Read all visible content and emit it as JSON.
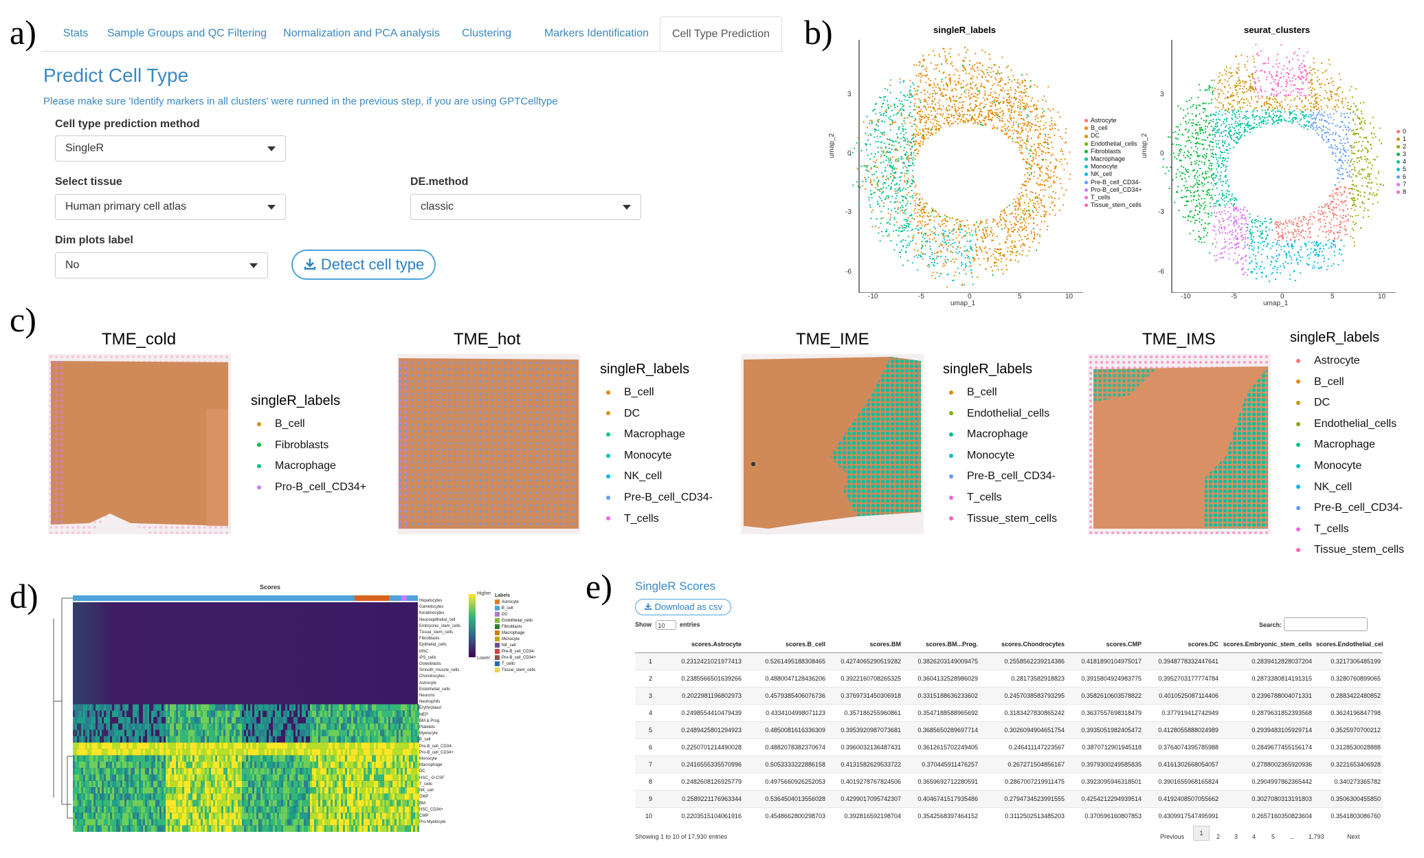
{
  "letters": {
    "a": "a)",
    "b": "b)",
    "c": "c)",
    "d": "d)",
    "e": "e)"
  },
  "panel_a": {
    "tabs": [
      "Stats",
      "Sample Groups and QC Filtering",
      "Normalization and PCA analysis",
      "Clustering",
      "Markers Identification",
      "Cell Type Prediction"
    ],
    "active_tab": "Cell Type Prediction",
    "title": "Predict Cell Type",
    "help": "Please make sure 'Identify markers in all clusters' were runned in the previous step, if you are using GPTCelltype",
    "method_label": "Cell type prediction method",
    "method_value": "SingleR",
    "tissue_label": "Select tissue",
    "tissue_value": "Human primary cell atlas",
    "de_label": "DE.method",
    "de_value": "classic",
    "dim_label": "Dim plots label",
    "dim_value": "No",
    "detect_label": "Detect cell type"
  },
  "panel_b": {
    "left_title": "singleR_labels",
    "right_title": "seurat_clusters",
    "xlabel": "umap_1",
    "ylabel": "umap_2",
    "xticks": [
      "-10",
      "-5",
      "0",
      "5",
      "10"
    ],
    "yticks": [
      "3",
      "0",
      "-3",
      "-6"
    ],
    "labels_legend": [
      {
        "name": "Astrocyte",
        "color": "#f8766d"
      },
      {
        "name": "B_cell",
        "color": "#e58700"
      },
      {
        "name": "DC",
        "color": "#c99800"
      },
      {
        "name": "Endothelial_cells",
        "color": "#7cae00"
      },
      {
        "name": "Fibroblasts",
        "color": "#00ba38"
      },
      {
        "name": "Macrophage",
        "color": "#00c08b"
      },
      {
        "name": "Monocyte",
        "color": "#00bfc4"
      },
      {
        "name": "NK_cell",
        "color": "#00b4f0"
      },
      {
        "name": "Pre-B_cell_CD34-",
        "color": "#619cff"
      },
      {
        "name": "Pro-B_cell_CD34+",
        "color": "#c77cff"
      },
      {
        "name": "T_cells",
        "color": "#f564e3"
      },
      {
        "name": "Tissue_stem_cells",
        "color": "#ff64b0"
      }
    ],
    "clusters_legend": [
      {
        "name": "0",
        "color": "#f8766d"
      },
      {
        "name": "1",
        "color": "#d39200"
      },
      {
        "name": "2",
        "color": "#93aa00"
      },
      {
        "name": "3",
        "color": "#00ba38"
      },
      {
        "name": "4",
        "color": "#00c19f"
      },
      {
        "name": "5",
        "color": "#00b9e3"
      },
      {
        "name": "6",
        "color": "#619cff"
      },
      {
        "name": "7",
        "color": "#db72fb"
      },
      {
        "name": "8",
        "color": "#ff61c3"
      }
    ]
  },
  "panel_c": {
    "samples": [
      {
        "title": "TME_cold",
        "legend_title": "singleR_labels",
        "legend": [
          {
            "name": "B_cell",
            "color": "#e58700"
          },
          {
            "name": "Fibroblasts",
            "color": "#00ba38"
          },
          {
            "name": "Macrophage",
            "color": "#00c08b"
          },
          {
            "name": "Pro-B_cell_CD34+",
            "color": "#c77cff"
          }
        ]
      },
      {
        "title": "TME_hot",
        "legend_title": "singleR_labels",
        "legend": [
          {
            "name": "B_cell",
            "color": "#e58700"
          },
          {
            "name": "DC",
            "color": "#c99800"
          },
          {
            "name": "Macrophage",
            "color": "#00c08b"
          },
          {
            "name": "Monocyte",
            "color": "#00bfc4"
          },
          {
            "name": "NK_cell",
            "color": "#00b4f0"
          },
          {
            "name": "Pre-B_cell_CD34-",
            "color": "#619cff"
          },
          {
            "name": "T_cells",
            "color": "#f564e3"
          }
        ]
      },
      {
        "title": "TME_IME",
        "legend_title": "singleR_labels",
        "legend": [
          {
            "name": "B_cell",
            "color": "#e58700"
          },
          {
            "name": "Endothelial_cells",
            "color": "#7cae00"
          },
          {
            "name": "Macrophage",
            "color": "#00c08b"
          },
          {
            "name": "Monocyte",
            "color": "#00bfc4"
          },
          {
            "name": "Pre-B_cell_CD34-",
            "color": "#619cff"
          },
          {
            "name": "T_cells",
            "color": "#f564e3"
          },
          {
            "name": "Tissue_stem_cells",
            "color": "#ff64b0"
          }
        ]
      },
      {
        "title": "TME_IMS",
        "legend_title": "singleR_labels",
        "legend": [
          {
            "name": "Astrocyte",
            "color": "#f8766d"
          },
          {
            "name": "B_cell",
            "color": "#e58700"
          },
          {
            "name": "DC",
            "color": "#c99800"
          },
          {
            "name": "Endothelial_cells",
            "color": "#7cae00"
          },
          {
            "name": "Macrophage",
            "color": "#00c08b"
          },
          {
            "name": "Monocyte",
            "color": "#00bfc4"
          },
          {
            "name": "NK_cell",
            "color": "#00b4f0"
          },
          {
            "name": "Pre-B_cell_CD34-",
            "color": "#619cff"
          },
          {
            "name": "T_cells",
            "color": "#f564e3"
          },
          {
            "name": "Tissue_stem_cells",
            "color": "#ff64b0"
          }
        ]
      }
    ]
  },
  "panel_d": {
    "title": "Scores",
    "legend_title": "Labels",
    "scale_high": "Higher",
    "scale_low": "Lower",
    "row_labels": [
      "Hepatocytes",
      "Gametocytes",
      "Keratinocytes",
      "Neuroepithelial_cell",
      "Embryonic_stem_cells",
      "Tissue_stem_cells",
      "Fibroblasts",
      "Epithelial_cells",
      "MSC",
      "iPS_cells",
      "Osteoblasts",
      "Smooth_muscle_cells",
      "Chondrocytes",
      "Astrocyte",
      "Endothelial_cells",
      "Neurons",
      "Neutrophils",
      "Erythroblast",
      "MEP",
      "BM & Prog.",
      "Platelets",
      "Myelocyte",
      "B_cell",
      "Pre-B_cell_CD34-",
      "Pro-B_cell_CD34+",
      "Monocyte",
      "Macrophage",
      "DC",
      "HSC_-G-CSF",
      "T_cells",
      "NK_cell",
      "GMP",
      "BM",
      "HSC_CD34+",
      "CMP",
      "Pro-Myelocyte"
    ],
    "labels_legend": [
      {
        "name": "Astrocyte",
        "color": "#e07b2a"
      },
      {
        "name": "B_cell",
        "color": "#4ea3d8"
      },
      {
        "name": "DC",
        "color": "#b07cc6"
      },
      {
        "name": "Endothelial_cells",
        "color": "#7fbf3f"
      },
      {
        "name": "Fibroblasts",
        "color": "#2e7d32"
      },
      {
        "name": "Macrophage",
        "color": "#d97a1a"
      },
      {
        "name": "Monocyte",
        "color": "#c9a400"
      },
      {
        "name": "NK_cell",
        "color": "#6a4c93"
      },
      {
        "name": "Pre-B_cell_CD34-",
        "color": "#d43f3a"
      },
      {
        "name": "Pro-B_cell_CD34+",
        "color": "#8c564b"
      },
      {
        "name": "T_cells",
        "color": "#1f6fb4"
      },
      {
        "name": "Tissue_stem_cells",
        "color": "#e8d44d"
      }
    ]
  },
  "panel_e": {
    "title": "SingleR Scores",
    "download": "Download as csv",
    "show_label": "Show",
    "entries_value": "10",
    "entries_label": "entries",
    "search_label": "Search:",
    "columns": [
      "",
      "scores.Astrocyte",
      "scores.B_cell",
      "scores.BM",
      "scores.BM...Prog.",
      "scores.Chondrocytes",
      "scores.CMP",
      "scores.DC",
      "scores.Embryonic_stem_cells",
      "scores.Endothelial_cell"
    ],
    "rows": [
      [
        "1",
        "0.2312421021977413",
        "0.5261495188308465",
        "0.4274065290519282",
        "0.3826203149009475",
        "0.2558562239214386",
        "0.4181890104975017",
        "0.3948778332447641",
        "0.2839412828037204",
        "0.3217306485199"
      ],
      [
        "2",
        "0.2385566501639266",
        "0.4880047128436206",
        "0.3922160708265325",
        "0.3604132528986029",
        "0.28173582918823",
        "0.3915804924983775",
        "0.3952703177774784",
        "0.2873380814191315",
        "0.3280760899065"
      ],
      [
        "3",
        "0.2022981196802973",
        "0.4579385406076736",
        "0.3769731450306918",
        "0.3315188636233602",
        "0.2457038583793295",
        "0.3582610603578822",
        "0.4010525087114406",
        "0.2396788004071331",
        "0.2883422480852"
      ],
      [
        "4",
        "0.2498554410479439",
        "0.4334104998071123",
        "0.357186255960861",
        "0.3547188588965692",
        "0.3183427830865242",
        "0.3637557698318479",
        "0.377919412742949",
        "0.2879631852393568",
        "0.3624196847798"
      ],
      [
        "5",
        "0.2489425801294923",
        "0.4850081616336309",
        "0.3953920987073681",
        "0.3685650289697714",
        "0.3026094904651754",
        "0.3935051982405472",
        "0.4128055888024989",
        "0.2939483105929714",
        "0.3525970700212"
      ],
      [
        "6",
        "0.2250701214490028",
        "0.4882078382370674",
        "0.3960032136487431",
        "0.3612615702249405",
        "0.246411147223567",
        "0.3870712901945118",
        "0.3764074395785988",
        "0.2849677455156174",
        "0.3128530028888"
      ],
      [
        "7",
        "0.2416555335570996",
        "0.5053333222886158",
        "0.4131582629533722",
        "0.370445911476257",
        "0.267271504856167",
        "0.3979300249585835",
        "0.4161302668054057",
        "0.2788002365920936",
        "0.3221653406928"
      ],
      [
        "8",
        "0.2482608126925779",
        "0.4975660926252053",
        "0.4019278767824506",
        "0.3659692712280591",
        "0.2867007219911475",
        "0.3923095946318501",
        "0.3901655968165824",
        "0.2904997862365442",
        "0.340273365782"
      ],
      [
        "9",
        "0.2589221176963344",
        "0.5364504013556028",
        "0.4299017095742307",
        "0.4046741517935486",
        "0.2794734523991555",
        "0.4254212294939514",
        "0.4192408507055662",
        "0.3027080313191803",
        "0.3506300455850"
      ],
      [
        "10",
        "0.2203515104061916",
        "0.4548662800298703",
        "0.392816592198704",
        "0.3542568397464152",
        "0.3112502513485203",
        "0.370596160807853",
        "0.4309917547495991",
        "0.2657160350823604",
        "0.3541803086760"
      ]
    ],
    "info": "Showing 1 to 10 of 17,930 entries",
    "pager": {
      "prev": "Previous",
      "pages": [
        "1",
        "2",
        "3",
        "4",
        "5",
        "...",
        "1,793"
      ],
      "next": "Next"
    }
  }
}
